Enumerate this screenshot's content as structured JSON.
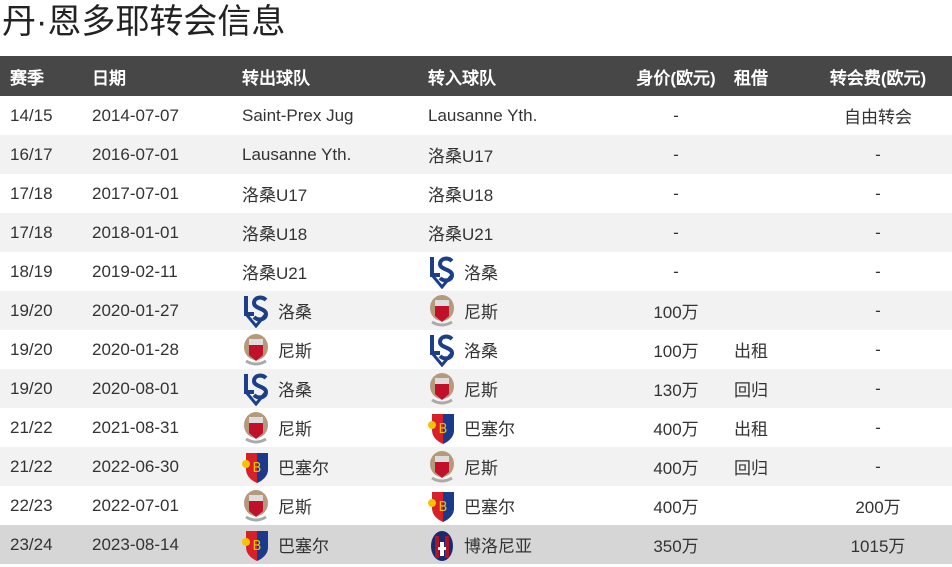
{
  "title": "丹·恩多耶转会信息",
  "headers": [
    "赛季",
    "日期",
    "转出球队",
    "转入球队",
    "身价(欧元)",
    "租借",
    "转会费(欧元)"
  ],
  "rows": [
    {
      "season": "14/15",
      "date": "2014-07-07",
      "from": "Saint-Prex Jug",
      "from_logo": "",
      "to": "Lausanne Yth.",
      "to_logo": "",
      "value": "-",
      "loan": "",
      "fee": "自由转会"
    },
    {
      "season": "16/17",
      "date": "2016-07-01",
      "from": "Lausanne Yth.",
      "from_logo": "",
      "to": "洛桑U17",
      "to_logo": "",
      "value": "-",
      "loan": "",
      "fee": "-"
    },
    {
      "season": "17/18",
      "date": "2017-07-01",
      "from": "洛桑U17",
      "from_logo": "",
      "to": "洛桑U18",
      "to_logo": "",
      "value": "-",
      "loan": "",
      "fee": "-"
    },
    {
      "season": "17/18",
      "date": "2018-01-01",
      "from": "洛桑U18",
      "from_logo": "",
      "to": "洛桑U21",
      "to_logo": "",
      "value": "-",
      "loan": "",
      "fee": "-"
    },
    {
      "season": "18/19",
      "date": "2019-02-11",
      "from": "洛桑U21",
      "from_logo": "",
      "to": "洛桑",
      "to_logo": "lausanne-logo",
      "value": "-",
      "loan": "",
      "fee": "-"
    },
    {
      "season": "19/20",
      "date": "2020-01-27",
      "from": "洛桑",
      "from_logo": "lausanne-logo",
      "to": "尼斯",
      "to_logo": "nice-logo",
      "value": "100万",
      "loan": "",
      "fee": "-"
    },
    {
      "season": "19/20",
      "date": "2020-01-28",
      "from": "尼斯",
      "from_logo": "nice-logo",
      "to": "洛桑",
      "to_logo": "lausanne-logo",
      "value": "100万",
      "loan": "出租",
      "fee": "-"
    },
    {
      "season": "19/20",
      "date": "2020-08-01",
      "from": "洛桑",
      "from_logo": "lausanne-logo",
      "to": "尼斯",
      "to_logo": "nice-logo",
      "value": "130万",
      "loan": "回归",
      "fee": "-"
    },
    {
      "season": "21/22",
      "date": "2021-08-31",
      "from": "尼斯",
      "from_logo": "nice-logo",
      "to": "巴塞尔",
      "to_logo": "basel-logo",
      "value": "400万",
      "loan": "出租",
      "fee": "-"
    },
    {
      "season": "21/22",
      "date": "2022-06-30",
      "from": "巴塞尔",
      "from_logo": "basel-logo",
      "to": "尼斯",
      "to_logo": "nice-logo",
      "value": "400万",
      "loan": "回归",
      "fee": "-"
    },
    {
      "season": "22/23",
      "date": "2022-07-01",
      "from": "尼斯",
      "from_logo": "nice-logo",
      "to": "巴塞尔",
      "to_logo": "basel-logo",
      "value": "400万",
      "loan": "",
      "fee": "200万"
    },
    {
      "season": "23/24",
      "date": "2023-08-14",
      "from": "巴塞尔",
      "from_logo": "basel-logo",
      "to": "博洛尼亚",
      "to_logo": "bologna-logo",
      "value": "350万",
      "loan": "",
      "fee": "1015万"
    }
  ]
}
